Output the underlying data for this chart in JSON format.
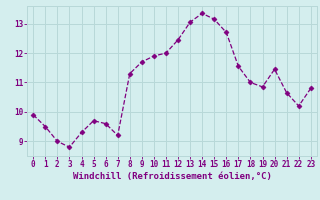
{
  "x": [
    0,
    1,
    2,
    3,
    4,
    5,
    6,
    7,
    8,
    9,
    10,
    11,
    12,
    13,
    14,
    15,
    16,
    17,
    18,
    19,
    20,
    21,
    22,
    23
  ],
  "y": [
    9.9,
    9.5,
    9.0,
    8.8,
    9.3,
    9.7,
    9.6,
    9.2,
    11.3,
    11.7,
    11.9,
    12.0,
    12.45,
    13.05,
    13.35,
    13.15,
    12.7,
    11.55,
    11.0,
    10.85,
    11.45,
    10.65,
    10.2,
    10.8
  ],
  "xlabel": "Windchill (Refroidissement éolien,°C)",
  "xlim": [
    -0.5,
    23.5
  ],
  "ylim": [
    8.5,
    13.6
  ],
  "yticks": [
    9,
    10,
    11,
    12,
    13
  ],
  "xticks": [
    0,
    1,
    2,
    3,
    4,
    5,
    6,
    7,
    8,
    9,
    10,
    11,
    12,
    13,
    14,
    15,
    16,
    17,
    18,
    19,
    20,
    21,
    22,
    23
  ],
  "line_color": "#800080",
  "marker": "D",
  "marker_size": 2.5,
  "bg_color": "#d4eeee",
  "grid_color": "#b8d8d8",
  "tick_label_color": "#800080",
  "xlabel_color": "#800080",
  "tick_fontsize": 5.5,
  "xlabel_fontsize": 6.5
}
